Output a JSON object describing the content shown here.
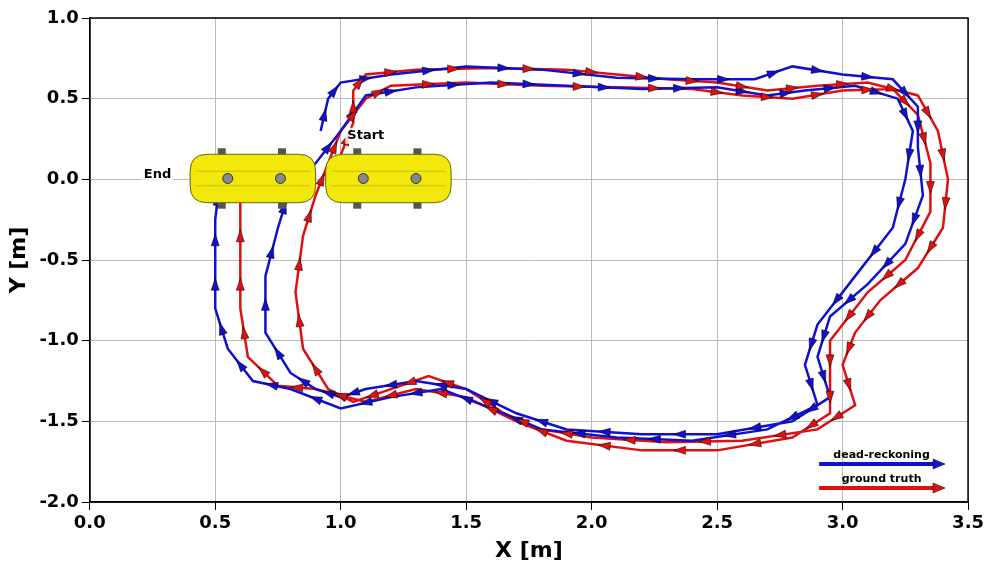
{
  "chart_data": {
    "type": "line",
    "marker": "arrow",
    "line_style": "solid",
    "x_label": "X [m]",
    "y_label": "Y [m]",
    "xlim": [
      0,
      3.5
    ],
    "ylim": [
      -2,
      1
    ],
    "xticks": [
      {
        "value": 0,
        "label": "0.0"
      },
      {
        "value": 0.5,
        "label": "0.5"
      },
      {
        "value": 1,
        "label": "1.0"
      },
      {
        "value": 1.5,
        "label": "1.5"
      },
      {
        "value": 2,
        "label": "2.0"
      },
      {
        "value": 2.5,
        "label": "2.5"
      },
      {
        "value": 3,
        "label": "3.0"
      },
      {
        "value": 3.5,
        "label": "3.5"
      }
    ],
    "yticks": [
      {
        "value": -2,
        "label": "-2.0"
      },
      {
        "value": -1.5,
        "label": "-1.5"
      },
      {
        "value": -1,
        "label": "-1.0"
      },
      {
        "value": -0.5,
        "label": "-0.5"
      },
      {
        "value": 0,
        "label": "0.0"
      },
      {
        "value": 0.5,
        "label": "0.5"
      },
      {
        "value": 1,
        "label": "1.0"
      }
    ],
    "grid": true,
    "legend": "lower right",
    "annotations": [
      {
        "text": "Start",
        "x": 1.1,
        "y": 0.27
      },
      {
        "text": "End",
        "x": 0.27,
        "y": 0.03
      }
    ],
    "series": [
      {
        "name": "dead-reckoning",
        "color": "#1010d0",
        "values": [
          [
            0.92,
            0.3
          ],
          [
            0.95,
            0.5
          ],
          [
            1.0,
            0.6
          ],
          [
            1.2,
            0.65
          ],
          [
            1.5,
            0.7
          ],
          [
            1.8,
            0.68
          ],
          [
            2.1,
            0.63
          ],
          [
            2.4,
            0.62
          ],
          [
            2.65,
            0.62
          ],
          [
            2.8,
            0.7
          ],
          [
            3.0,
            0.65
          ],
          [
            3.2,
            0.62
          ],
          [
            3.3,
            0.45
          ],
          [
            3.3,
            0.2
          ],
          [
            3.32,
            -0.1
          ],
          [
            3.25,
            -0.4
          ],
          [
            3.1,
            -0.65
          ],
          [
            2.95,
            -0.85
          ],
          [
            2.9,
            -1.1
          ],
          [
            2.95,
            -1.35
          ],
          [
            2.8,
            -1.5
          ],
          [
            2.5,
            -1.58
          ],
          [
            2.2,
            -1.58
          ],
          [
            1.9,
            -1.55
          ],
          [
            1.7,
            -1.45
          ],
          [
            1.5,
            -1.3
          ],
          [
            1.3,
            -1.25
          ],
          [
            1.1,
            -1.3
          ],
          [
            1.0,
            -1.35
          ],
          [
            0.9,
            -1.3
          ],
          [
            0.8,
            -1.2
          ],
          [
            0.7,
            -0.95
          ],
          [
            0.7,
            -0.6
          ],
          [
            0.75,
            -0.3
          ],
          [
            0.8,
            -0.05
          ],
          [
            0.9,
            0.1
          ],
          [
            1.0,
            0.3
          ],
          [
            1.1,
            0.52
          ],
          [
            1.3,
            0.57
          ],
          [
            1.6,
            0.6
          ],
          [
            1.9,
            0.58
          ],
          [
            2.2,
            0.56
          ],
          [
            2.5,
            0.57
          ],
          [
            2.7,
            0.52
          ],
          [
            2.85,
            0.55
          ],
          [
            3.05,
            0.58
          ],
          [
            3.22,
            0.5
          ],
          [
            3.28,
            0.3
          ],
          [
            3.25,
            0.0
          ],
          [
            3.2,
            -0.3
          ],
          [
            3.05,
            -0.6
          ],
          [
            2.9,
            -0.9
          ],
          [
            2.85,
            -1.15
          ],
          [
            2.9,
            -1.4
          ],
          [
            2.7,
            -1.55
          ],
          [
            2.4,
            -1.62
          ],
          [
            2.1,
            -1.6
          ],
          [
            1.8,
            -1.55
          ],
          [
            1.6,
            -1.42
          ],
          [
            1.4,
            -1.3
          ],
          [
            1.2,
            -1.35
          ],
          [
            1.0,
            -1.42
          ],
          [
            0.8,
            -1.3
          ],
          [
            0.65,
            -1.25
          ],
          [
            0.55,
            -1.05
          ],
          [
            0.5,
            -0.8
          ],
          [
            0.5,
            -0.5
          ],
          [
            0.5,
            -0.25
          ],
          [
            0.52,
            0.0
          ]
        ]
      },
      {
        "name": "ground truth",
        "color": "#e01010",
        "values": [
          [
            1.0,
            0.15
          ],
          [
            1.05,
            0.35
          ],
          [
            1.05,
            0.55
          ],
          [
            1.1,
            0.65
          ],
          [
            1.3,
            0.68
          ],
          [
            1.6,
            0.69
          ],
          [
            1.9,
            0.68
          ],
          [
            2.1,
            0.65
          ],
          [
            2.3,
            0.62
          ],
          [
            2.5,
            0.6
          ],
          [
            2.7,
            0.55
          ],
          [
            2.9,
            0.58
          ],
          [
            3.1,
            0.6
          ],
          [
            3.3,
            0.52
          ],
          [
            3.38,
            0.3
          ],
          [
            3.42,
            0.0
          ],
          [
            3.4,
            -0.3
          ],
          [
            3.3,
            -0.55
          ],
          [
            3.15,
            -0.75
          ],
          [
            3.05,
            -0.95
          ],
          [
            3.0,
            -1.15
          ],
          [
            3.05,
            -1.4
          ],
          [
            2.9,
            -1.55
          ],
          [
            2.6,
            -1.62
          ],
          [
            2.3,
            -1.63
          ],
          [
            2.0,
            -1.6
          ],
          [
            1.8,
            -1.55
          ],
          [
            1.65,
            -1.45
          ],
          [
            1.5,
            -1.3
          ],
          [
            1.35,
            -1.22
          ],
          [
            1.2,
            -1.3
          ],
          [
            1.05,
            -1.38
          ],
          [
            0.95,
            -1.3
          ],
          [
            0.85,
            -1.05
          ],
          [
            0.82,
            -0.7
          ],
          [
            0.85,
            -0.35
          ],
          [
            0.9,
            -0.1
          ],
          [
            0.95,
            0.1
          ],
          [
            1.0,
            0.3
          ],
          [
            1.1,
            0.5
          ],
          [
            1.2,
            0.58
          ],
          [
            1.5,
            0.6
          ],
          [
            1.8,
            0.58
          ],
          [
            2.1,
            0.57
          ],
          [
            2.4,
            0.56
          ],
          [
            2.6,
            0.52
          ],
          [
            2.8,
            0.5
          ],
          [
            3.0,
            0.55
          ],
          [
            3.2,
            0.56
          ],
          [
            3.3,
            0.4
          ],
          [
            3.35,
            0.1
          ],
          [
            3.35,
            -0.2
          ],
          [
            3.25,
            -0.5
          ],
          [
            3.1,
            -0.7
          ],
          [
            2.95,
            -1.0
          ],
          [
            2.95,
            -1.25
          ],
          [
            2.95,
            -1.45
          ],
          [
            2.8,
            -1.6
          ],
          [
            2.5,
            -1.68
          ],
          [
            2.2,
            -1.68
          ],
          [
            1.9,
            -1.62
          ],
          [
            1.7,
            -1.5
          ],
          [
            1.5,
            -1.35
          ],
          [
            1.3,
            -1.3
          ],
          [
            1.1,
            -1.38
          ],
          [
            0.9,
            -1.3
          ],
          [
            0.75,
            -1.28
          ],
          [
            0.63,
            -1.1
          ],
          [
            0.6,
            -0.8
          ],
          [
            0.6,
            -0.5
          ],
          [
            0.6,
            -0.2
          ],
          [
            0.6,
            0.0
          ]
        ]
      }
    ]
  }
}
